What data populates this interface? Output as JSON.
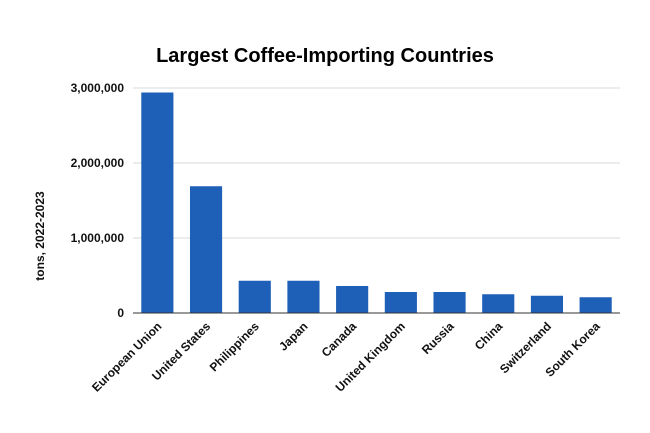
{
  "chart_data": {
    "type": "bar",
    "title": "Largest Coffee-Importing Countries",
    "xlabel": "",
    "ylabel": "tons, 2022-2023",
    "categories": [
      "European Union",
      "United States",
      "Philippines",
      "Japan",
      "Canada",
      "United Kingdom",
      "Russia",
      "China",
      "Switzerland",
      "South Korea"
    ],
    "values": [
      2940000,
      1690000,
      430000,
      430000,
      360000,
      280000,
      280000,
      250000,
      230000,
      210000
    ],
    "ylim": [
      0,
      3000000
    ],
    "yticks": [
      {
        "value": 0,
        "label": "0"
      },
      {
        "value": 1000000,
        "label": "1,000,000"
      },
      {
        "value": 2000000,
        "label": "2,000,000"
      },
      {
        "value": 3000000,
        "label": "3,000,000"
      }
    ],
    "grid": true,
    "bar_color": "#1e5fb8",
    "legend": "none"
  }
}
